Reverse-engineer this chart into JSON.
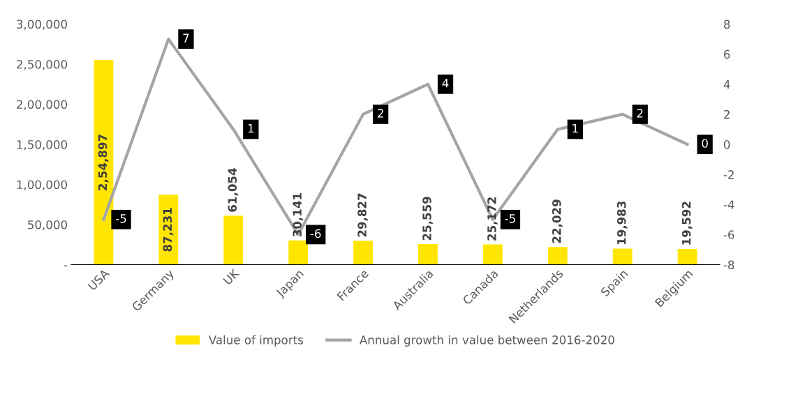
{
  "chart_data": {
    "type": "bar",
    "categories": [
      "USA",
      "Germany",
      "UK",
      "Japan",
      "France",
      "Australia",
      "Canada",
      "Netherlands",
      "Spain",
      "Belgium"
    ],
    "series": [
      {
        "name": "Value of imports",
        "color": "#ffe600",
        "values": [
          254897,
          87231,
          61054,
          30141,
          29827,
          25559,
          25172,
          22029,
          19983,
          19592
        ],
        "value_labels": [
          "2,54,897",
          "87,231",
          "61,054",
          "30,141",
          "29,827",
          "25,559",
          "25,172",
          "22,029",
          "19,983",
          "19,592"
        ]
      },
      {
        "name": "Annual growth in value between 2016-2020",
        "type": "line",
        "axis": "y2",
        "color": "#a5a5a5",
        "values": [
          -5,
          7,
          1,
          -6,
          2,
          4,
          -5,
          1,
          2,
          0
        ],
        "value_labels": [
          "-5",
          "7",
          "1",
          "-6",
          "2",
          "4",
          "-5",
          "1",
          "2",
          "0"
        ]
      }
    ],
    "ylim": [
      0,
      300000
    ],
    "yticks": [
      {
        "value": 0,
        "label": "-"
      },
      {
        "value": 50000,
        "label": "50,000"
      },
      {
        "value": 100000,
        "label": "1,00,000"
      },
      {
        "value": 150000,
        "label": "1,50,000"
      },
      {
        "value": 200000,
        "label": "2,00,000"
      },
      {
        "value": 250000,
        "label": "2,50,000"
      },
      {
        "value": 300000,
        "label": "3,00,000"
      }
    ],
    "y2lim": [
      -8,
      8
    ],
    "y2ticks": [
      -8,
      -6,
      -4,
      -2,
      0,
      2,
      4,
      6,
      8
    ],
    "grid": false,
    "legend": "bottom",
    "marker": "none",
    "line_style": "solid"
  }
}
